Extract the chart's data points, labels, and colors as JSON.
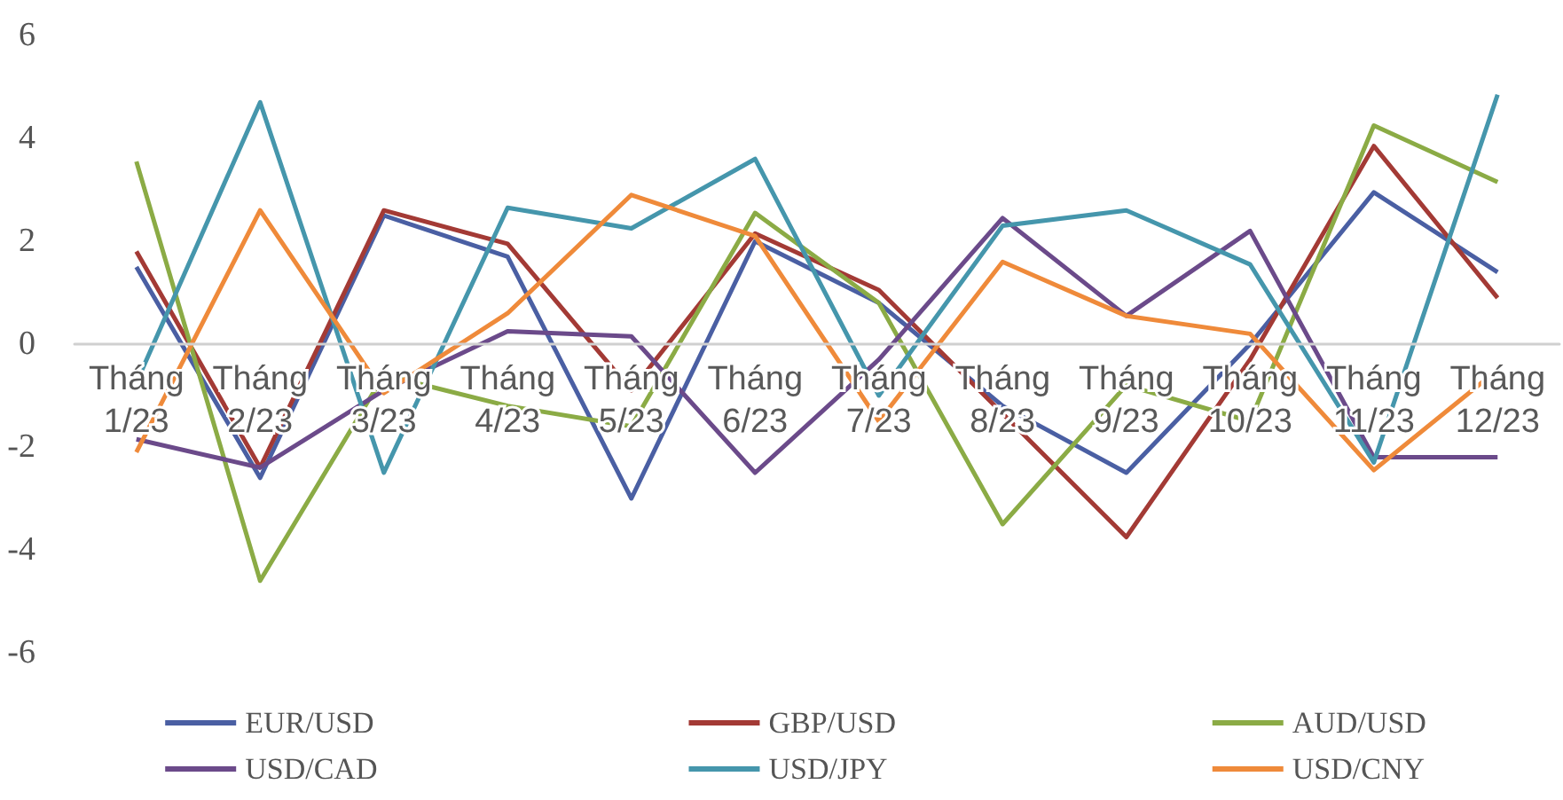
{
  "chart_data": {
    "type": "line",
    "categories": [
      "Tháng 1/23",
      "Tháng 2/23",
      "Tháng 3/23",
      "Tháng 4/23",
      "Tháng 5/23",
      "Tháng 6/23",
      "Tháng 7/23",
      "Tháng 8/23",
      "Tháng 9/23",
      "Tháng 10/23",
      "Tháng 11/23",
      "Tháng 12/23"
    ],
    "series": [
      {
        "name": "EUR/USD",
        "color": "#4a5fa3",
        "values": [
          1.5,
          -2.6,
          2.5,
          1.7,
          -3.0,
          2.0,
          0.8,
          -1.2,
          -2.5,
          0.0,
          2.95,
          1.4
        ]
      },
      {
        "name": "GBP/USD",
        "color": "#a33a35",
        "values": [
          1.8,
          -2.4,
          2.6,
          1.95,
          -0.9,
          2.15,
          1.05,
          -1.35,
          -3.75,
          -0.3,
          3.85,
          0.9
        ]
      },
      {
        "name": "AUD/USD",
        "color": "#8bab45",
        "values": [
          3.55,
          -4.6,
          -0.6,
          -1.2,
          -1.6,
          2.55,
          0.8,
          -3.5,
          -0.8,
          -1.5,
          4.25,
          3.15
        ]
      },
      {
        "name": "USD/CAD",
        "color": "#6b4a8a",
        "values": [
          -1.85,
          -2.4,
          -0.9,
          0.25,
          0.15,
          -2.5,
          -0.3,
          2.45,
          0.55,
          2.2,
          -2.2,
          -2.2
        ]
      },
      {
        "name": "USD/JPY",
        "color": "#4596ac",
        "values": [
          -0.75,
          4.7,
          -2.5,
          2.65,
          2.25,
          3.6,
          -1.0,
          2.3,
          2.6,
          1.55,
          -2.3,
          4.85
        ]
      },
      {
        "name": "USD/CNY",
        "color": "#ef8a3a",
        "values": [
          -2.1,
          2.6,
          -0.95,
          0.6,
          2.9,
          2.1,
          -1.5,
          1.6,
          0.55,
          0.2,
          -2.45,
          -0.5
        ]
      }
    ],
    "ylim": [
      -6,
      6
    ],
    "yticks": [
      -6,
      -4,
      -2,
      0,
      2,
      4,
      6
    ],
    "grid": false,
    "legend": "bottom",
    "marker": "none",
    "line_style": "solid"
  }
}
